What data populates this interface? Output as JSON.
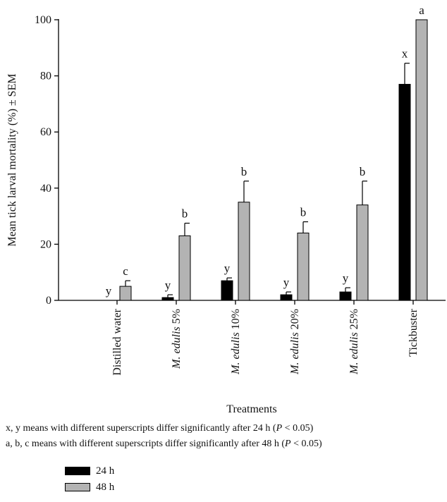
{
  "chart_data": {
    "type": "bar",
    "ylabel": "Mean tick larval mortality (%) ± SEM",
    "xlabel": "Treatments",
    "ylim": [
      0,
      100
    ],
    "yticks": [
      0,
      20,
      40,
      60,
      80,
      100
    ],
    "categories": [
      {
        "pre": "",
        "italic": "",
        "post": "Distilled water"
      },
      {
        "pre": "",
        "italic": "M. edulis",
        "post": " 5%"
      },
      {
        "pre": "",
        "italic": "M. edulis",
        "post": " 10%"
      },
      {
        "pre": "",
        "italic": "M. edulis",
        "post": " 20%"
      },
      {
        "pre": "",
        "italic": "M. edulis",
        "post": " 25%"
      },
      {
        "pre": "",
        "italic": "",
        "post": "Tickbuster"
      }
    ],
    "series": [
      {
        "name": "24 h",
        "color": "#000000",
        "values": [
          0,
          1,
          7,
          2,
          3,
          77
        ],
        "errors": [
          0,
          1,
          1,
          1,
          1.5,
          7.5
        ],
        "letters": [
          "y",
          "y",
          "y",
          "y",
          "y",
          "x"
        ]
      },
      {
        "name": "48 h",
        "color": "#b3b3b3",
        "values": [
          5,
          23,
          35,
          24,
          34,
          100
        ],
        "errors": [
          2,
          4.5,
          7.5,
          4,
          8.5,
          0
        ],
        "letters": [
          "c",
          "b",
          "b",
          "b",
          "b",
          "a"
        ]
      }
    ],
    "grid": false,
    "legend_position": "bottom-left"
  },
  "footnotes": {
    "line1_pre": "x, y means with different superscripts differ significantly after 24 h (",
    "line1_var": "P",
    "line1_post": " < 0.05)",
    "line2_pre": "a, b, c means with different superscripts differ significantly after 48 h (",
    "line2_var": "P",
    "line2_post": " < 0.05)"
  },
  "legend": {
    "items": [
      {
        "label": "24 h",
        "color": "#000000"
      },
      {
        "label": "48 h",
        "color": "#b3b3b3"
      }
    ]
  }
}
